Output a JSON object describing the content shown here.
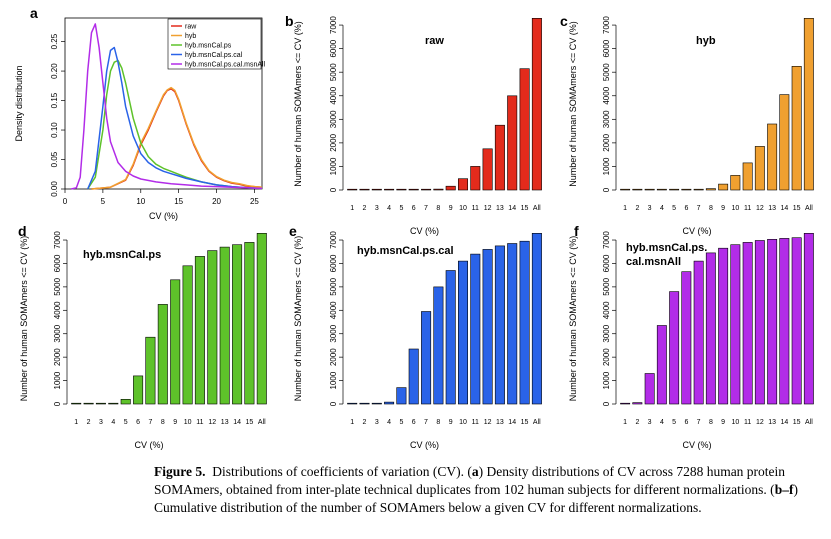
{
  "panels": [
    {
      "letter": "a",
      "type": "line",
      "ylabel": "Density distribution",
      "xlabel": "CV (%)",
      "xlim": [
        0,
        26
      ],
      "ylim": [
        0,
        0.29
      ],
      "xticks": [
        0,
        5,
        10,
        15,
        20,
        25
      ],
      "yticks": [
        "0.00",
        "0.05",
        "0.10",
        "0.15",
        "0.20",
        "0.25"
      ],
      "legend": "top-right",
      "series": [
        {
          "name": "raw",
          "color": "#e32b1c",
          "x": [
            3.5,
            6,
            8,
            9,
            10,
            11,
            12,
            13,
            13.5,
            14,
            14.5,
            15,
            16,
            17,
            18,
            19,
            20,
            21,
            22,
            23,
            24,
            25,
            26
          ],
          "y": [
            0,
            0.003,
            0.015,
            0.04,
            0.075,
            0.1,
            0.13,
            0.158,
            0.167,
            0.17,
            0.165,
            0.15,
            0.11,
            0.075,
            0.048,
            0.03,
            0.02,
            0.014,
            0.01,
            0.008,
            0.005,
            0.004,
            0.003
          ]
        },
        {
          "name": "hyb",
          "color": "#f0a030",
          "x": [
            3.5,
            6,
            8,
            9,
            10,
            11,
            12,
            13,
            13.5,
            14,
            14.5,
            15,
            16,
            17,
            18,
            19,
            20,
            21,
            22,
            23,
            24,
            25,
            26
          ],
          "y": [
            0,
            0.003,
            0.016,
            0.042,
            0.078,
            0.103,
            0.132,
            0.16,
            0.168,
            0.172,
            0.167,
            0.152,
            0.112,
            0.077,
            0.05,
            0.031,
            0.021,
            0.015,
            0.011,
            0.009,
            0.006,
            0.004,
            0.003
          ]
        },
        {
          "name": "hyb.msnCal.ps",
          "color": "#5ec22a",
          "x": [
            3,
            4,
            5,
            5.5,
            6,
            6.5,
            7,
            7.5,
            8,
            9,
            10,
            11,
            12,
            13,
            14,
            15,
            16,
            18,
            20,
            22,
            24,
            26
          ],
          "y": [
            0,
            0.02,
            0.1,
            0.16,
            0.2,
            0.215,
            0.218,
            0.205,
            0.18,
            0.12,
            0.078,
            0.055,
            0.042,
            0.035,
            0.03,
            0.025,
            0.02,
            0.012,
            0.007,
            0.004,
            0.002,
            0.001
          ]
        },
        {
          "name": "hyb.msnCal.ps.cal",
          "color": "#2a63e8",
          "x": [
            3,
            4,
            5,
            5.5,
            6,
            6.5,
            7,
            7.5,
            8,
            9,
            10,
            11,
            12,
            13,
            14,
            15,
            16,
            18,
            20,
            22,
            24,
            26
          ],
          "y": [
            0,
            0.03,
            0.14,
            0.2,
            0.235,
            0.24,
            0.215,
            0.18,
            0.14,
            0.09,
            0.06,
            0.045,
            0.036,
            0.03,
            0.026,
            0.022,
            0.018,
            0.012,
            0.007,
            0.004,
            0.002,
            0.001
          ]
        },
        {
          "name": "hyb.msnCal.ps.cal.msnAll",
          "color": "#b22ce8",
          "x": [
            0.8,
            1.5,
            2,
            2.5,
            3,
            3.5,
            4,
            4.5,
            5,
            5.5,
            6,
            7,
            8,
            9,
            10,
            12,
            14,
            16,
            18,
            20,
            22,
            24,
            26
          ],
          "y": [
            0,
            0.002,
            0.02,
            0.1,
            0.2,
            0.265,
            0.28,
            0.24,
            0.18,
            0.12,
            0.08,
            0.045,
            0.03,
            0.022,
            0.017,
            0.012,
            0.009,
            0.007,
            0.005,
            0.004,
            0.003,
            0.002,
            0.001
          ]
        }
      ]
    },
    {
      "letter": "b",
      "type": "bar",
      "title": "raw",
      "color": "#e32b1c",
      "ylabel": "Number of human SOMAmers <= CV (%)",
      "xlabel": "CV (%)",
      "categories": [
        "1",
        "2",
        "3",
        "4",
        "5",
        "6",
        "7",
        "8",
        "9",
        "10",
        "11",
        "12",
        "13",
        "14",
        "15",
        "All"
      ],
      "values": [
        0,
        0,
        0,
        0,
        0,
        0,
        5,
        40,
        160,
        480,
        1000,
        1750,
        2750,
        4000,
        5150,
        7288
      ],
      "ylim": [
        0,
        7300
      ],
      "yticks": [
        "0",
        "1000",
        "2000",
        "3000",
        "4000",
        "5000",
        "6000",
        "7000"
      ]
    },
    {
      "letter": "c",
      "type": "bar",
      "title": "hyb",
      "color": "#f0a030",
      "ylabel": "Number of human SOMAmers <= CV (%)",
      "xlabel": "CV (%)",
      "categories": [
        "1",
        "2",
        "3",
        "4",
        "5",
        "6",
        "7",
        "8",
        "9",
        "10",
        "11",
        "12",
        "13",
        "14",
        "15",
        "All"
      ],
      "values": [
        0,
        0,
        0,
        0,
        0,
        0,
        10,
        60,
        250,
        620,
        1150,
        1850,
        2800,
        4050,
        5250,
        7288
      ],
      "ylim": [
        0,
        7300
      ],
      "yticks": [
        "0",
        "1000",
        "2000",
        "3000",
        "4000",
        "5000",
        "6000",
        "7000"
      ]
    },
    {
      "letter": "d",
      "type": "bar",
      "title": "hyb.msnCal.ps",
      "color": "#5ec22a",
      "ylabel": "Number of human SOMAmers <= CV (%)",
      "xlabel": "CV (%)",
      "categories": [
        "1",
        "2",
        "3",
        "4",
        "5",
        "6",
        "7",
        "8",
        "9",
        "10",
        "11",
        "12",
        "13",
        "14",
        "15",
        "All"
      ],
      "values": [
        0,
        0,
        0,
        20,
        200,
        1200,
        2850,
        4250,
        5300,
        5900,
        6300,
        6550,
        6700,
        6800,
        6900,
        7288
      ],
      "ylim": [
        0,
        7300
      ],
      "yticks": [
        "0",
        "1000",
        "2000",
        "3000",
        "4000",
        "5000",
        "6000",
        "7000"
      ]
    },
    {
      "letter": "e",
      "type": "bar",
      "title": "hyb.msnCal.ps.cal",
      "color": "#2a63e8",
      "ylabel": "Number of human SOMAmers <= CV (%)",
      "xlabel": "CV (%)",
      "categories": [
        "1",
        "2",
        "3",
        "4",
        "5",
        "6",
        "7",
        "8",
        "9",
        "10",
        "11",
        "12",
        "13",
        "14",
        "15",
        "All"
      ],
      "values": [
        0,
        0,
        0,
        80,
        700,
        2350,
        3950,
        5000,
        5700,
        6100,
        6400,
        6600,
        6750,
        6850,
        6950,
        7288
      ],
      "ylim": [
        0,
        7300
      ],
      "yticks": [
        "0",
        "1000",
        "2000",
        "3000",
        "4000",
        "5000",
        "6000",
        "7000"
      ]
    },
    {
      "letter": "f",
      "type": "bar",
      "title_lines": [
        "hyb.msnCal.ps.",
        "cal.msnAll"
      ],
      "color": "#b22ce8",
      "ylabel": "Number of human SOMAmers <= CV (%)",
      "xlabel": "CV (%)",
      "categories": [
        "1",
        "2",
        "3",
        "4",
        "5",
        "6",
        "7",
        "8",
        "9",
        "10",
        "11",
        "12",
        "13",
        "14",
        "15",
        "All"
      ],
      "values": [
        0,
        60,
        1300,
        3350,
        4800,
        5650,
        6100,
        6450,
        6650,
        6800,
        6900,
        6980,
        7030,
        7070,
        7100,
        7288
      ],
      "ylim": [
        0,
        7300
      ],
      "yticks": [
        "0",
        "1000",
        "2000",
        "3000",
        "4000",
        "5000",
        "6000",
        "7000"
      ]
    }
  ],
  "caption": {
    "label": "Figure 5.",
    "text_1": "Distributions of coefficients of variation (CV). (",
    "a": "a",
    "text_2": ") Density distributions of CV across 7288 human protein SOMAmers, obtained from inter-plate technical duplicates from 102 human subjects for different normalizations. (",
    "bf": "b–f",
    "text_3": ") Cumulative distribution of the number of SOMAmers below a given CV for different normalizations."
  }
}
